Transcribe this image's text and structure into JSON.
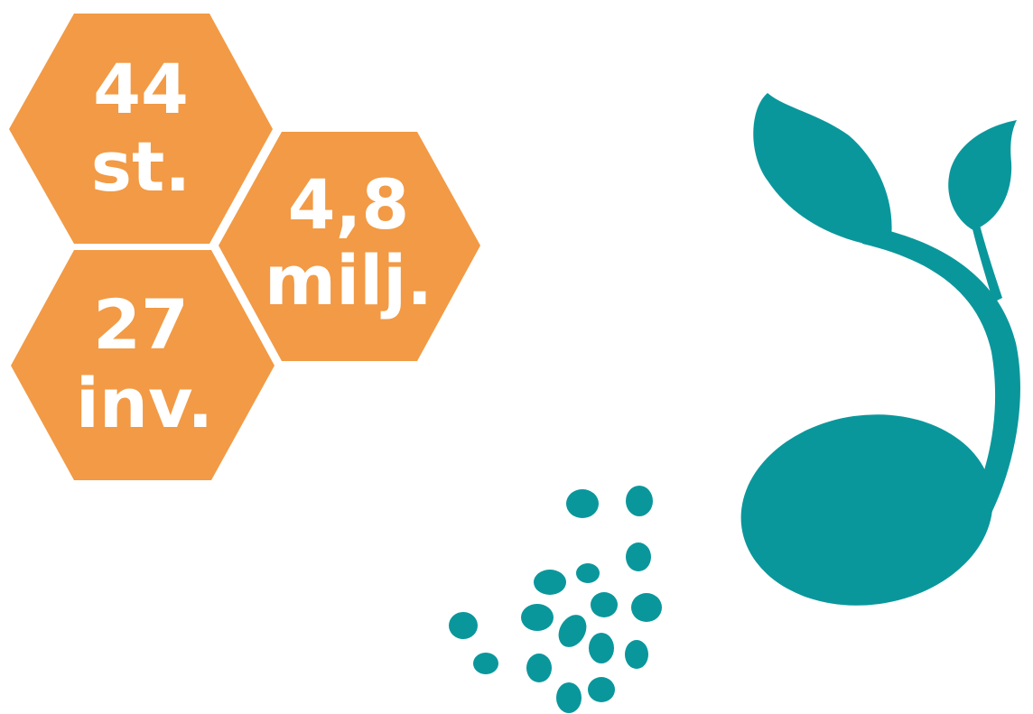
{
  "hexagons": [
    {
      "number": "44",
      "unit": "st."
    },
    {
      "number": "4,8",
      "unit": "milj."
    },
    {
      "number": "27",
      "unit": "inv."
    }
  ]
}
